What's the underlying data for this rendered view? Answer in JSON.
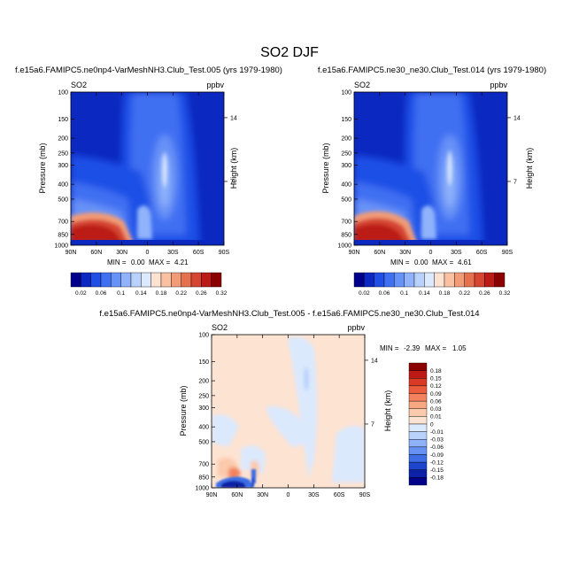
{
  "page_title": "SO2 DJF",
  "chart_data": [
    {
      "type": "heatmap",
      "title": "f.e15a6.FAMIPC5.ne0np4-VarMeshNH3.Club_Test.005 (yrs 1979-1980)",
      "variable": "SO2",
      "units": "ppbv",
      "xlabel": "",
      "ylabel": "Pressure (mb)",
      "y2label": "Height (km)",
      "x_tick_labels": [
        "90N",
        "60N",
        "30N",
        "0",
        "30S",
        "60S",
        "90S"
      ],
      "y_tick_labels": [
        "100",
        "150",
        "200",
        "250",
        "300",
        "400",
        "500",
        "700",
        "850",
        "1000"
      ],
      "y2_tick_labels": [
        "14",
        "7"
      ],
      "min_label": "MIN =",
      "min_value": "0.00",
      "max_label": "MAX =",
      "max_value": "4.21",
      "colorbar_labels": [
        "0.02",
        "0.06",
        "0.1",
        "0.14",
        "0.18",
        "0.22",
        "0.26",
        "0.32"
      ]
    },
    {
      "type": "heatmap",
      "title": "f.e15a6.FAMIPC5.ne30_ne30.Club_Test.014 (yrs 1979-1980)",
      "variable": "SO2",
      "units": "ppbv",
      "xlabel": "",
      "ylabel": "Pressure (mb)",
      "y2label": "Height (km)",
      "x_tick_labels": [
        "90N",
        "60N",
        "30N",
        "0",
        "30S",
        "60S",
        "90S"
      ],
      "y_tick_labels": [
        "100",
        "150",
        "200",
        "250",
        "300",
        "400",
        "500",
        "700",
        "850",
        "1000"
      ],
      "y2_tick_labels": [
        "14",
        "7"
      ],
      "min_label": "MIN =",
      "min_value": "0.00",
      "max_label": "MAX =",
      "max_value": "4.61",
      "colorbar_labels": [
        "0.02",
        "0.06",
        "0.1",
        "0.14",
        "0.18",
        "0.22",
        "0.26",
        "0.32"
      ]
    },
    {
      "type": "heatmap",
      "title": "f.e15a6.FAMIPC5.ne0np4-VarMeshNH3.Club_Test.005 - f.e15a6.FAMIPC5.ne30_ne30.Club_Test.014",
      "variable": "SO2",
      "units": "ppbv",
      "xlabel": "",
      "ylabel": "Pressure (mb)",
      "y2label": "Height (km)",
      "x_tick_labels": [
        "90N",
        "60N",
        "30N",
        "0",
        "30S",
        "60S",
        "90S"
      ],
      "y_tick_labels": [
        "100",
        "150",
        "200",
        "250",
        "300",
        "400",
        "500",
        "700",
        "850",
        "1000"
      ],
      "y2_tick_labels": [
        "14",
        "7"
      ],
      "min_label": "MIN =",
      "min_value": "-2.39",
      "max_label": "MAX =",
      "max_value": "1.05",
      "colorbar_labels": [
        "0.18",
        "0.15",
        "0.12",
        "0.09",
        "0.06",
        "0.03",
        "0.01",
        "0",
        "-0.01",
        "-0.03",
        "-0.06",
        "-0.09",
        "-0.12",
        "-0.15",
        "-0.18"
      ]
    }
  ],
  "palettes": {
    "sequential": [
      "#00008b",
      "#0b28c0",
      "#1f4fe6",
      "#3f70f2",
      "#6792f7",
      "#90b3fb",
      "#b9d1fd",
      "#ddeafe",
      "#fde2cf",
      "#f9c0a2",
      "#f29b77",
      "#e7714f",
      "#d54530",
      "#bb1c17",
      "#8b0000"
    ],
    "difference": [
      "#8b0000",
      "#bd1a15",
      "#d93a26",
      "#ea5c3d",
      "#f3825d",
      "#f8a783",
      "#fbc9ac",
      "#fde3d2",
      "#dbe9fd",
      "#b8d2fc",
      "#8fb2f8",
      "#6690f2",
      "#3e6de6",
      "#1d46cc",
      "#0b22a6",
      "#00008b"
    ]
  }
}
